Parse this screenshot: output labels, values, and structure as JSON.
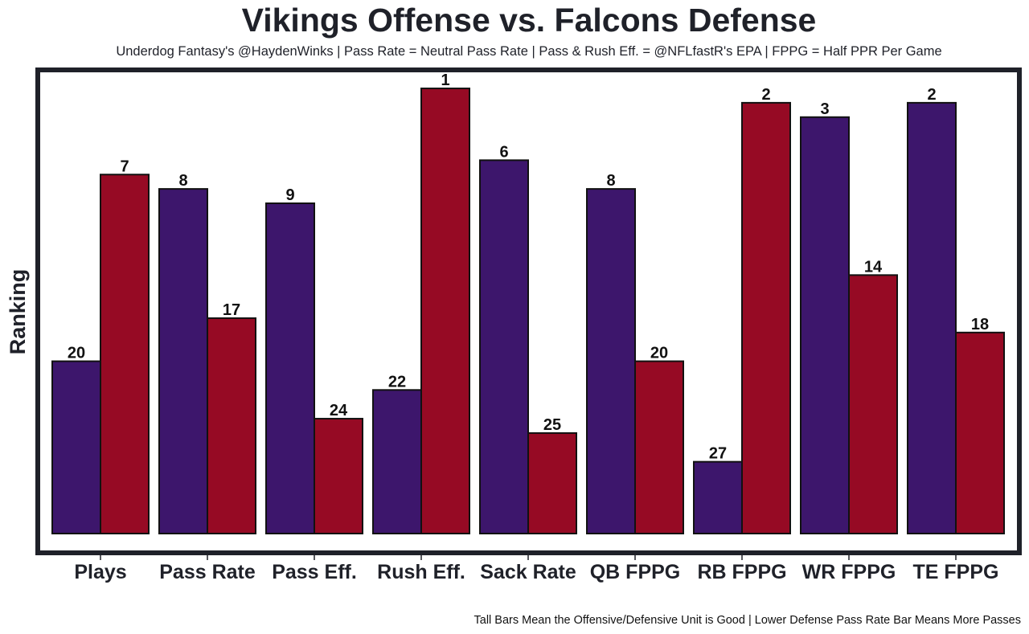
{
  "chart_data": {
    "type": "bar",
    "title": "Vikings Offense vs. Falcons Defense",
    "subtitle": "Underdog Fantasy's @HaydenWinks | Pass Rate = Neutral Pass Rate | Pass & Rush Eff. = @NFLfastR's EPA | FPPG = Half PPR Per Game",
    "footer": "Tall Bars Mean the Offensive/Defensive Unit is Good | Lower Defense Pass Rate Bar Means More Passes",
    "xlabel": "",
    "ylabel": "Ranking",
    "categories": [
      "Plays",
      "Pass Rate",
      "Pass Eff.",
      "Rush Eff.",
      "Sack Rate",
      "QB FPPG",
      "RB FPPG",
      "WR FPPG",
      "TE FPPG"
    ],
    "series": [
      {
        "name": "Vikings Offense",
        "color": "#3d166c",
        "values": [
          20,
          8,
          9,
          22,
          6,
          8,
          27,
          3,
          2
        ]
      },
      {
        "name": "Falcons Defense",
        "color": "#960a24",
        "values": [
          7,
          17,
          24,
          1,
          25,
          20,
          2,
          14,
          18
        ]
      }
    ],
    "bar_height_rule": "height = 32 - ranking (taller = better rank)",
    "ylim_rank": [
      32,
      0
    ],
    "grid": false,
    "legend": "none",
    "yticks_shown": false
  }
}
